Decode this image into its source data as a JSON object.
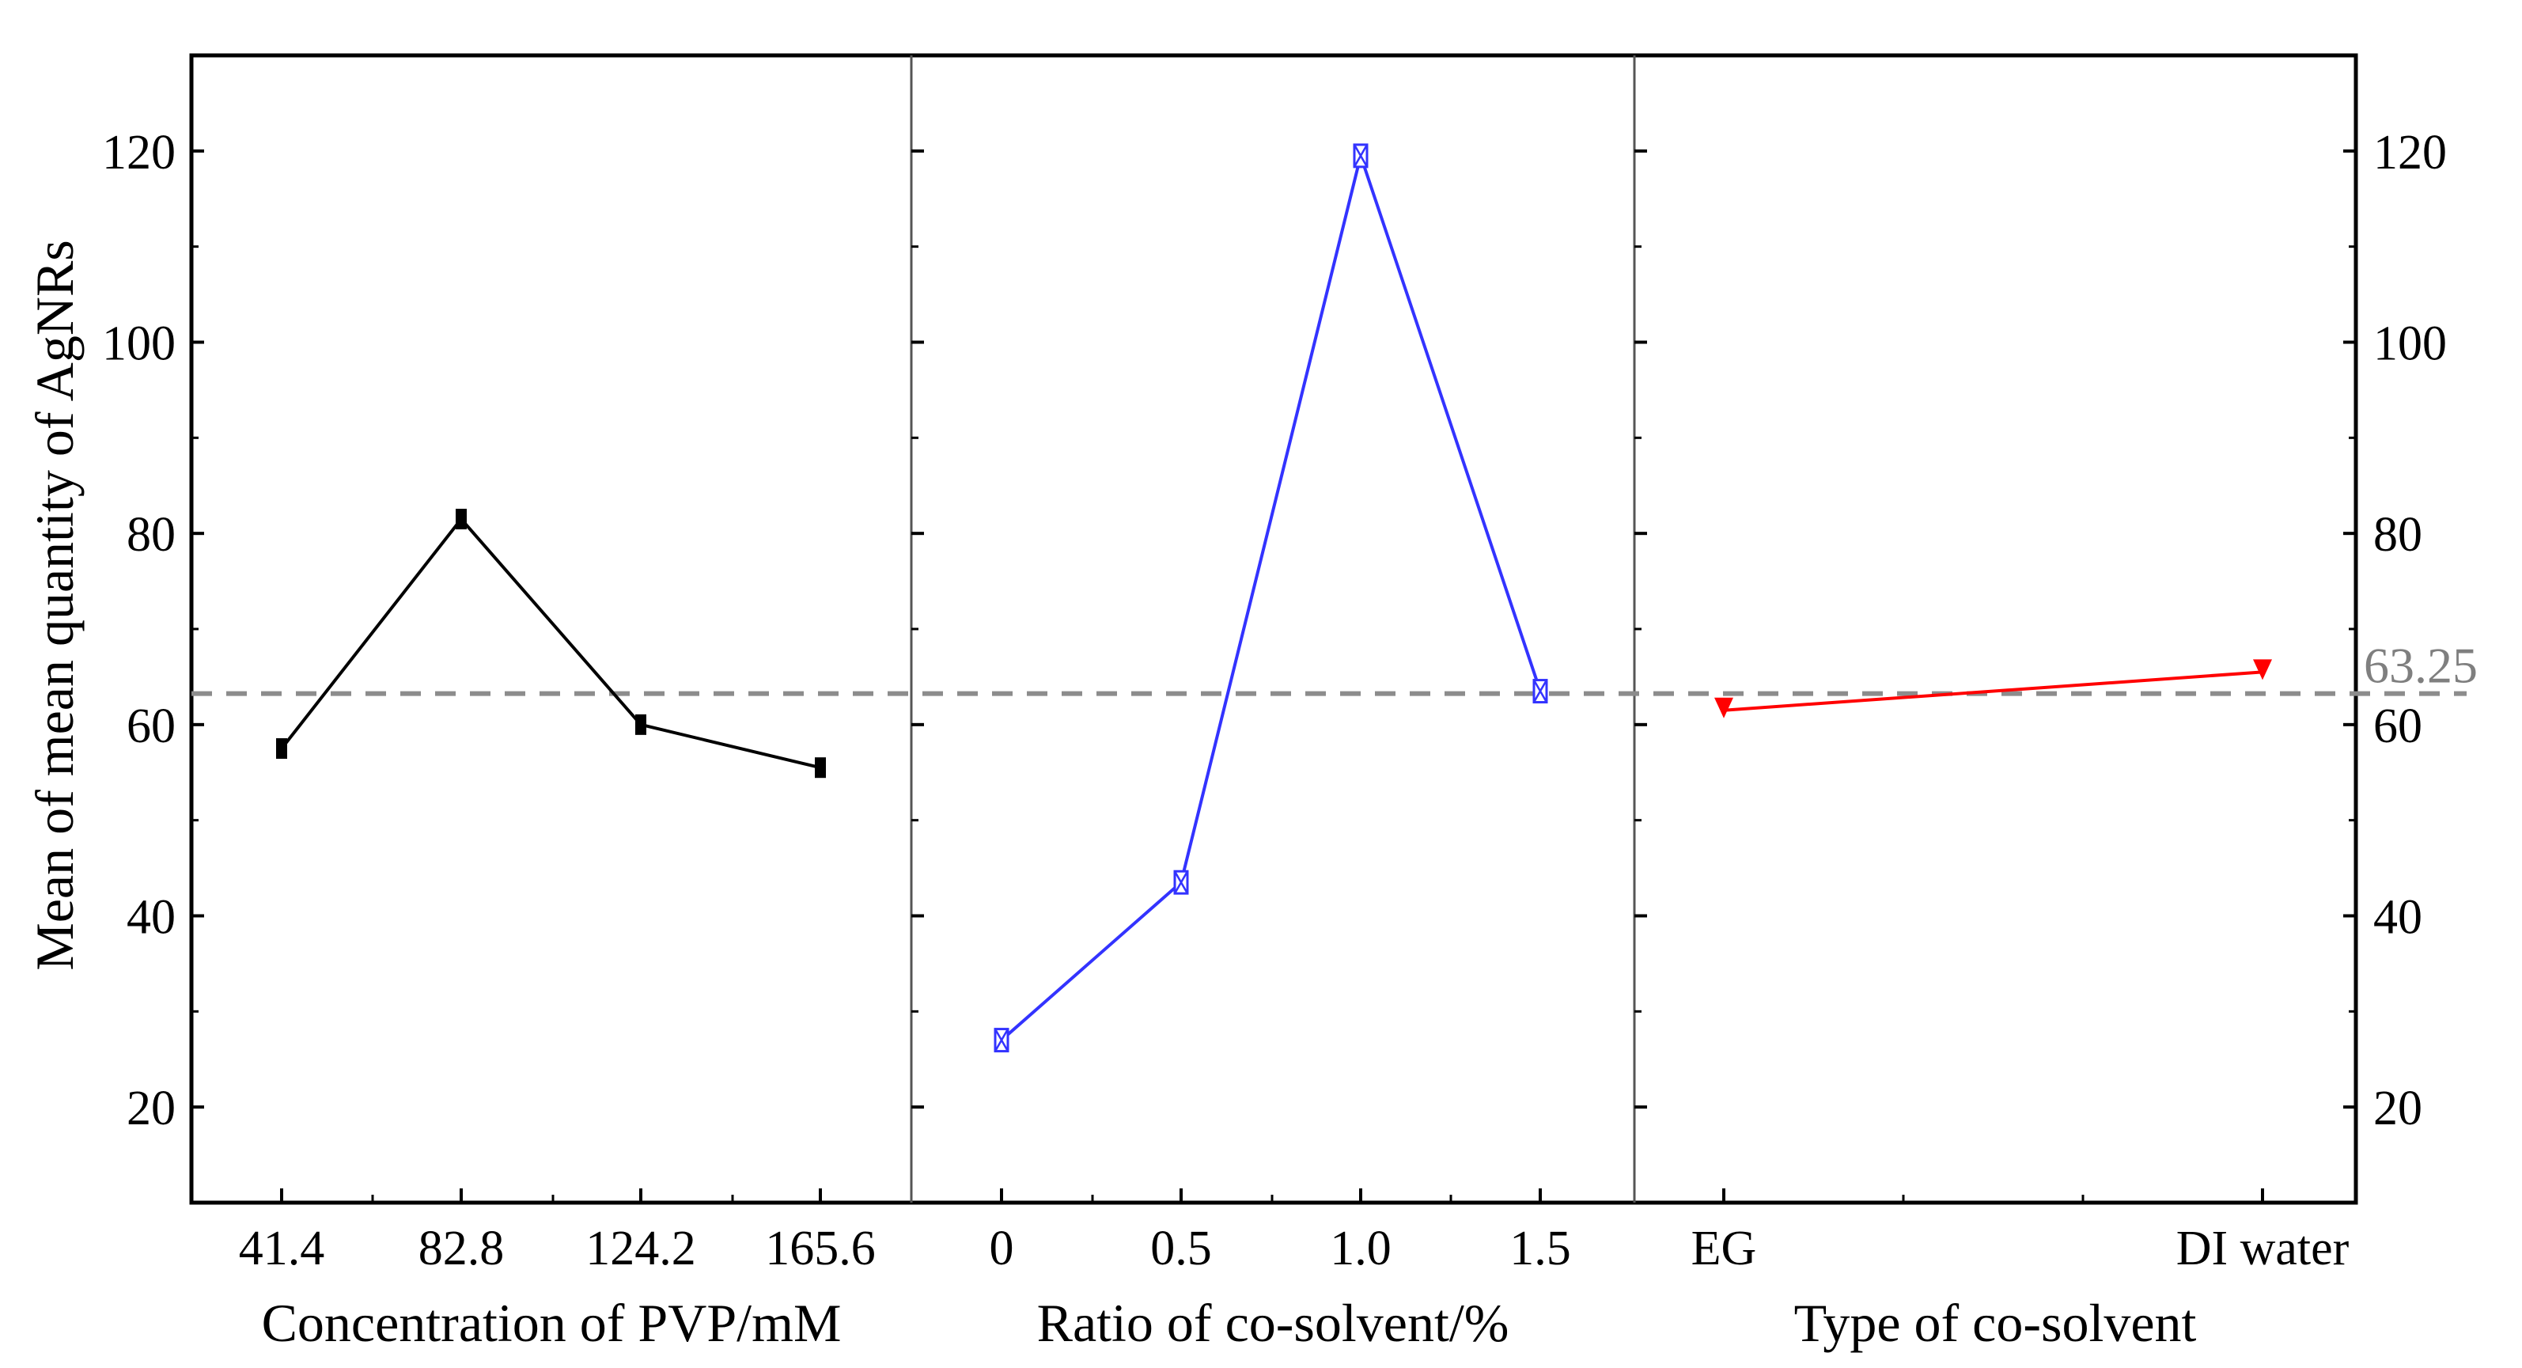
{
  "chart_data": {
    "type": "line",
    "title": "",
    "ylabel": "Mean of mean quantity of AgNRs",
    "ylim": [
      10,
      130
    ],
    "yticks": [
      "20",
      "40",
      "60",
      "80",
      "100",
      "120"
    ],
    "overall_mean": 63.25,
    "overall_mean_label": "63.25",
    "panels": [
      {
        "xlabel": "Concentration of PVP/mM",
        "categories": [
          "41.4",
          "82.8",
          "124.2",
          "165.6"
        ],
        "values": [
          57.5,
          81.5,
          60,
          55.5
        ],
        "color": "#000000",
        "marker": "square"
      },
      {
        "xlabel": "Ratio of co-solvent/%",
        "categories": [
          "0",
          "0.5",
          "1.0",
          "1.5"
        ],
        "values": [
          27,
          43.5,
          119.5,
          63.5
        ],
        "color": "#3333ff",
        "marker": "hourglass"
      },
      {
        "xlabel": "Type of co-solvent",
        "categories": [
          "EG",
          "DI water"
        ],
        "values": [
          61.5,
          65.5
        ],
        "color": "#ff0000",
        "marker": "triangle-down"
      }
    ]
  }
}
